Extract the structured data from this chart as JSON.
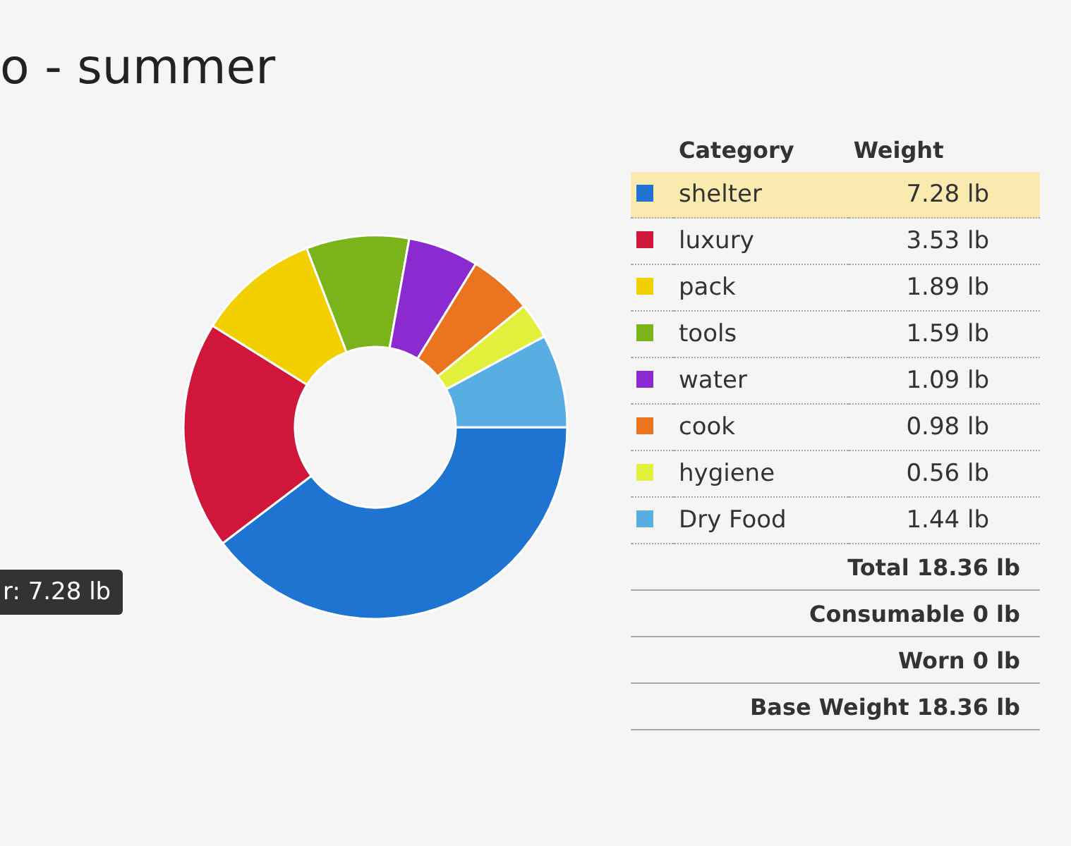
{
  "chart_data": {
    "type": "donut",
    "title": "o - summer",
    "legend_title": "Category",
    "legend": "right",
    "categories": [
      "shelter",
      "luxury",
      "pack",
      "tools",
      "water",
      "cook",
      "hygiene",
      "Dry Food"
    ],
    "values": [
      7.28,
      3.53,
      1.89,
      1.59,
      1.09,
      0.98,
      0.56,
      1.44
    ],
    "colors": [
      "#1f74d2",
      "#d0173b",
      "#f2d000",
      "#7bb31a",
      "#8a2ad0",
      "#ea7420",
      "#e2ef3b",
      "#58aee3"
    ],
    "value_labels": [
      "7.28 lb",
      "3.53 lb",
      "1.89 lb",
      "1.59 lb",
      "1.09 lb",
      "0.98 lb",
      "0.56 lb",
      "1.44 lb"
    ],
    "annotations": [
      "Weight",
      "Total 18.36 lb",
      "Consumable 0 lb",
      "Worn 0 lb",
      "Base Weight 18.36 lb",
      "r: 7.28 lb"
    ]
  }
}
